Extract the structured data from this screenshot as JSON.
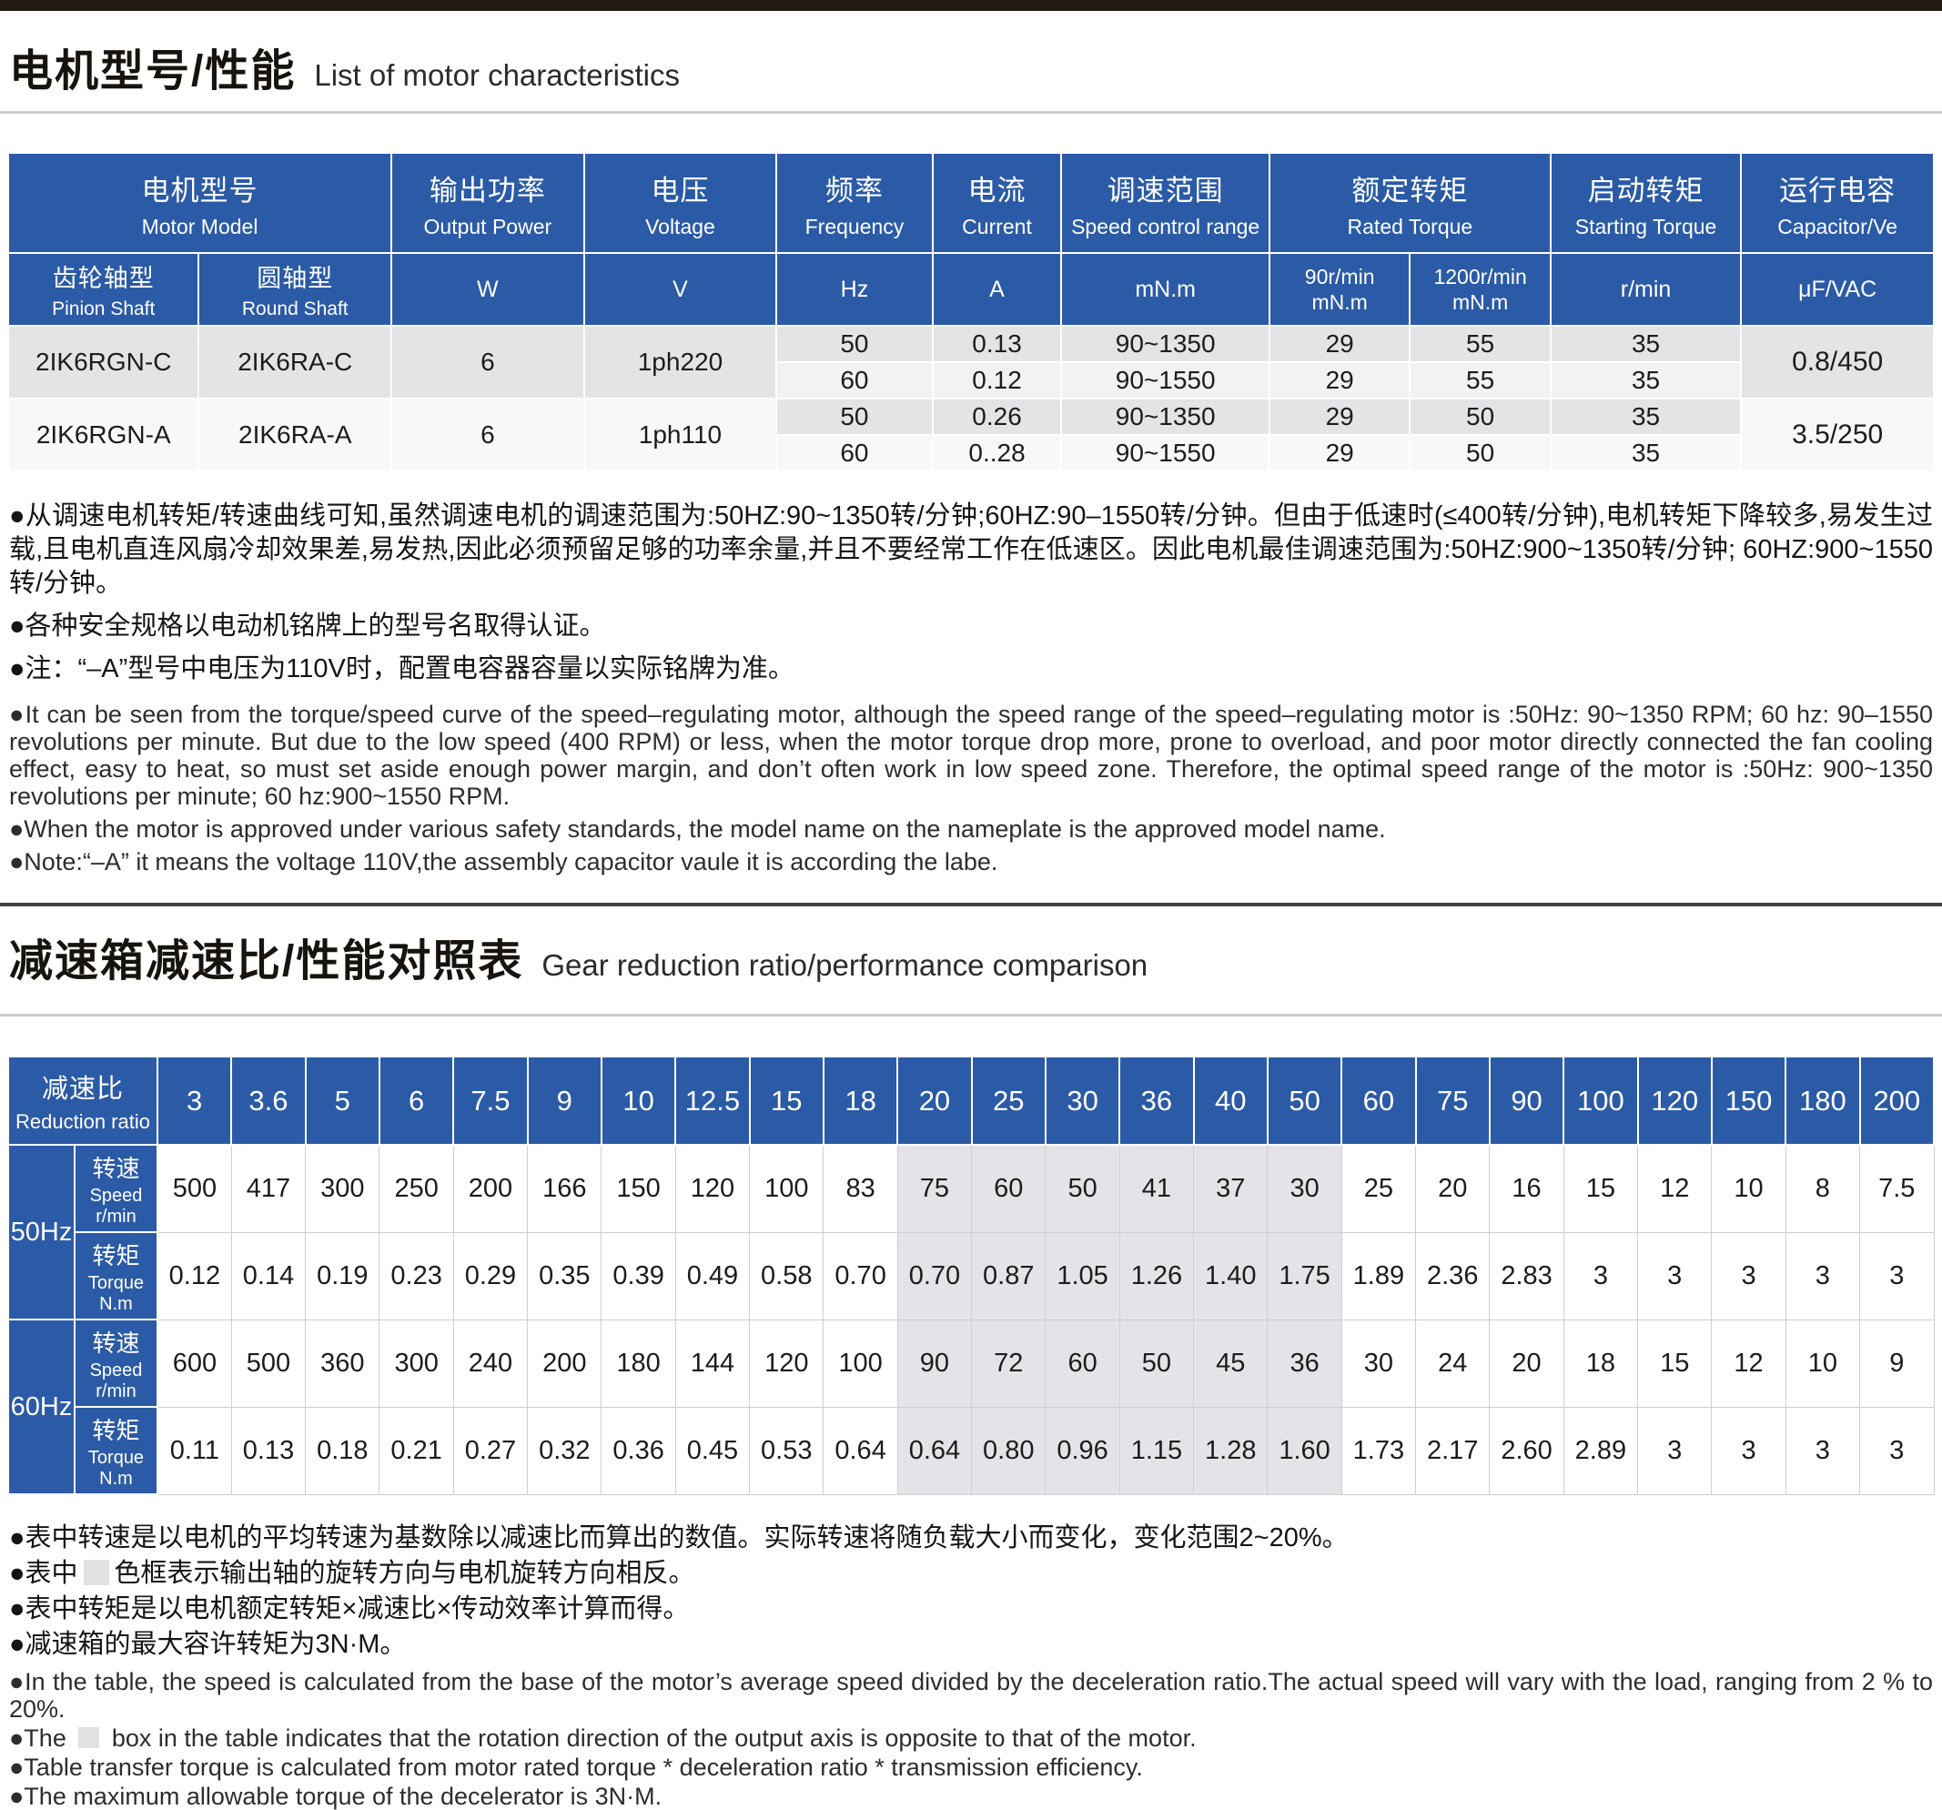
{
  "section1": {
    "title_zh": "电机型号/性能",
    "title_en": "List of motor characteristics"
  },
  "motor_table": {
    "headers": {
      "model_zh": "电机型号",
      "model_en": "Motor Model",
      "power_zh": "输出功率",
      "power_en": "Output Power",
      "voltage_zh": "电压",
      "voltage_en": "Voltage",
      "freq_zh": "频率",
      "freq_en": "Frequency",
      "current_zh": "电流",
      "current_en": "Current",
      "range_zh": "调速范围",
      "range_en": "Speed control range",
      "rated_zh": "额定转矩",
      "rated_en": "Rated Torque",
      "starting_zh": "启动转矩",
      "starting_en": "Starting Torque",
      "cap_zh": "运行电容",
      "cap_en": "Capacitor/Ve",
      "pinion_zh": "齿轮轴型",
      "pinion_en": "Pinion Shaft",
      "round_zh": "圆轴型",
      "round_en": "Round Shaft",
      "unit_w": "W",
      "unit_v": "V",
      "unit_hz": "Hz",
      "unit_a": "A",
      "unit_mnm": "mN.m",
      "rated90_l1": "90r/min",
      "rated90_l2": "mN.m",
      "rated1200_l1": "1200r/min",
      "rated1200_l2": "mN.m",
      "unit_rmin": "r/min",
      "unit_uf": "μF/VAC"
    },
    "groups": [
      {
        "pinion": "2IK6RGN-C",
        "round": "2IK6RA-C",
        "power": "6",
        "voltage": "1ph220",
        "capacitor": "0.8/450",
        "rows": [
          {
            "hz": "50",
            "current": "0.13",
            "range": "90~1350",
            "rated90": "29",
            "rated1200": "55",
            "starting": "35"
          },
          {
            "hz": "60",
            "current": "0.12",
            "range": "90~1550",
            "rated90": "29",
            "rated1200": "55",
            "starting": "35"
          }
        ]
      },
      {
        "pinion": "2IK6RGN-A",
        "round": "2IK6RA-A",
        "power": "6",
        "voltage": "1ph110",
        "capacitor": "3.5/250",
        "rows": [
          {
            "hz": "50",
            "current": "0.26",
            "range": "90~1350",
            "rated90": "29",
            "rated1200": "50",
            "starting": "35"
          },
          {
            "hz": "60",
            "current": "0..28",
            "range": "90~1550",
            "rated90": "29",
            "rated1200": "50",
            "starting": "35"
          }
        ]
      }
    ]
  },
  "notes_motor_zh": [
    "●从调速电机转矩/转速曲线可知,虽然调速电机的调速范围为:50HZ:90~1350转/分钟;60HZ:90–1550转/分钟。但由于低速时(≤400转/分钟),电机转矩下降较多,易发生过载,且电机直连风扇冷却效果差,易发热,因此必须预留足够的功率余量,并且不要经常工作在低速区。因此电机最佳调速范围为:50HZ:900~1350转/分钟; 60HZ:900~1550转/分钟。",
    "●各种安全规格以电动机铭牌上的型号名取得认证。",
    "●注：“–A”型号中电压为110V时，配置电容器容量以实际铭牌为准。"
  ],
  "notes_motor_en": [
    "●It can be seen from the torque/speed curve of the speed–regulating motor, although the speed range of the speed–regulating motor is :50Hz: 90~1350 RPM; 60 hz: 90–1550 revolutions per minute. But due to the low speed (400 RPM) or less, when the motor torque drop more, prone to overload, and poor motor directly connected the fan cooling effect, easy to heat, so must set aside enough power margin, and don’t often work in low speed zone. Therefore, the optimal speed range of the motor is :50Hz: 900~1350 revolutions per minute; 60 hz:900~1550 RPM.",
    "●When the motor is approved under various safety standards, the model name on the nameplate is the approved model name.",
    "●Note:“–A” it means the voltage 110V,the assembly capacitor vaule it is according the labe."
  ],
  "section2": {
    "title_zh": "减速箱减速比/性能对照表",
    "title_en": "Gear reduction ratio/performance comparison"
  },
  "gear_table": {
    "type": "table",
    "corner_zh": "减速比",
    "corner_en": "Reduction ratio",
    "ratios": [
      "3",
      "3.6",
      "5",
      "6",
      "7.5",
      "9",
      "10",
      "12.5",
      "15",
      "18",
      "20",
      "25",
      "30",
      "36",
      "40",
      "50",
      "60",
      "75",
      "90",
      "100",
      "120",
      "150",
      "180",
      "200"
    ],
    "reversed_cols": [
      10,
      11,
      12,
      13,
      14,
      15
    ],
    "row_groups": [
      {
        "freq": "50Hz",
        "rows": [
          {
            "label_zh": "转速",
            "label_en": "Speed",
            "unit": "r/min",
            "values": [
              "500",
              "417",
              "300",
              "250",
              "200",
              "166",
              "150",
              "120",
              "100",
              "83",
              "75",
              "60",
              "50",
              "41",
              "37",
              "30",
              "25",
              "20",
              "16",
              "15",
              "12",
              "10",
              "8",
              "7.5"
            ]
          },
          {
            "label_zh": "转矩",
            "label_en": "Torque",
            "unit": "N.m",
            "values": [
              "0.12",
              "0.14",
              "0.19",
              "0.23",
              "0.29",
              "0.35",
              "0.39",
              "0.49",
              "0.58",
              "0.70",
              "0.70",
              "0.87",
              "1.05",
              "1.26",
              "1.40",
              "1.75",
              "1.89",
              "2.36",
              "2.83",
              "3",
              "3",
              "3",
              "3",
              "3"
            ]
          }
        ]
      },
      {
        "freq": "60Hz",
        "rows": [
          {
            "label_zh": "转速",
            "label_en": "Speed",
            "unit": "r/min",
            "values": [
              "600",
              "500",
              "360",
              "300",
              "240",
              "200",
              "180",
              "144",
              "120",
              "100",
              "90",
              "72",
              "60",
              "50",
              "45",
              "36",
              "30",
              "24",
              "20",
              "18",
              "15",
              "12",
              "10",
              "9"
            ]
          },
          {
            "label_zh": "转矩",
            "label_en": "Torque",
            "unit": "N.m",
            "values": [
              "0.11",
              "0.13",
              "0.18",
              "0.21",
              "0.27",
              "0.32",
              "0.36",
              "0.45",
              "0.53",
              "0.64",
              "0.64",
              "0.80",
              "0.96",
              "1.15",
              "1.28",
              "1.60",
              "1.73",
              "2.17",
              "2.60",
              "2.89",
              "3",
              "3",
              "3",
              "3"
            ]
          }
        ]
      }
    ]
  },
  "notes_gear_zh": [
    "●表中转速是以电机的平均转速为基数除以减速比而算出的数值。实际转速将随负载大小而变化，变化范围2~20%。",
    "●表中{box}色框表示输出轴的旋转方向与电机旋转方向相反。",
    "●表中转矩是以电机额定转矩×减速比×传动效率计算而得。",
    "●减速箱的最大容许转矩为3N·M。"
  ],
  "notes_gear_en": [
    "●In the table, the speed is calculated from the base of the motor’s average speed divided by the deceleration ratio.The actual speed will vary with the load, ranging from 2 % to 20%.",
    "●The {box} box in the table indicates that the rotation direction of the output axis is opposite to that of the motor.",
    "●Table transfer torque is calculated from motor rated torque * deceleration ratio * transmission efficiency.",
    "●The maximum allowable torque of the decelerator is 3N·M."
  ],
  "colors": {
    "header_blue": "#2b5ba6",
    "row_dark": "#e4e4e7",
    "row_mid": "#f2f2f5",
    "row_light": "#f8f8fa",
    "reversed_highlight": "#e4e4e8",
    "topbar": "#241a15"
  }
}
